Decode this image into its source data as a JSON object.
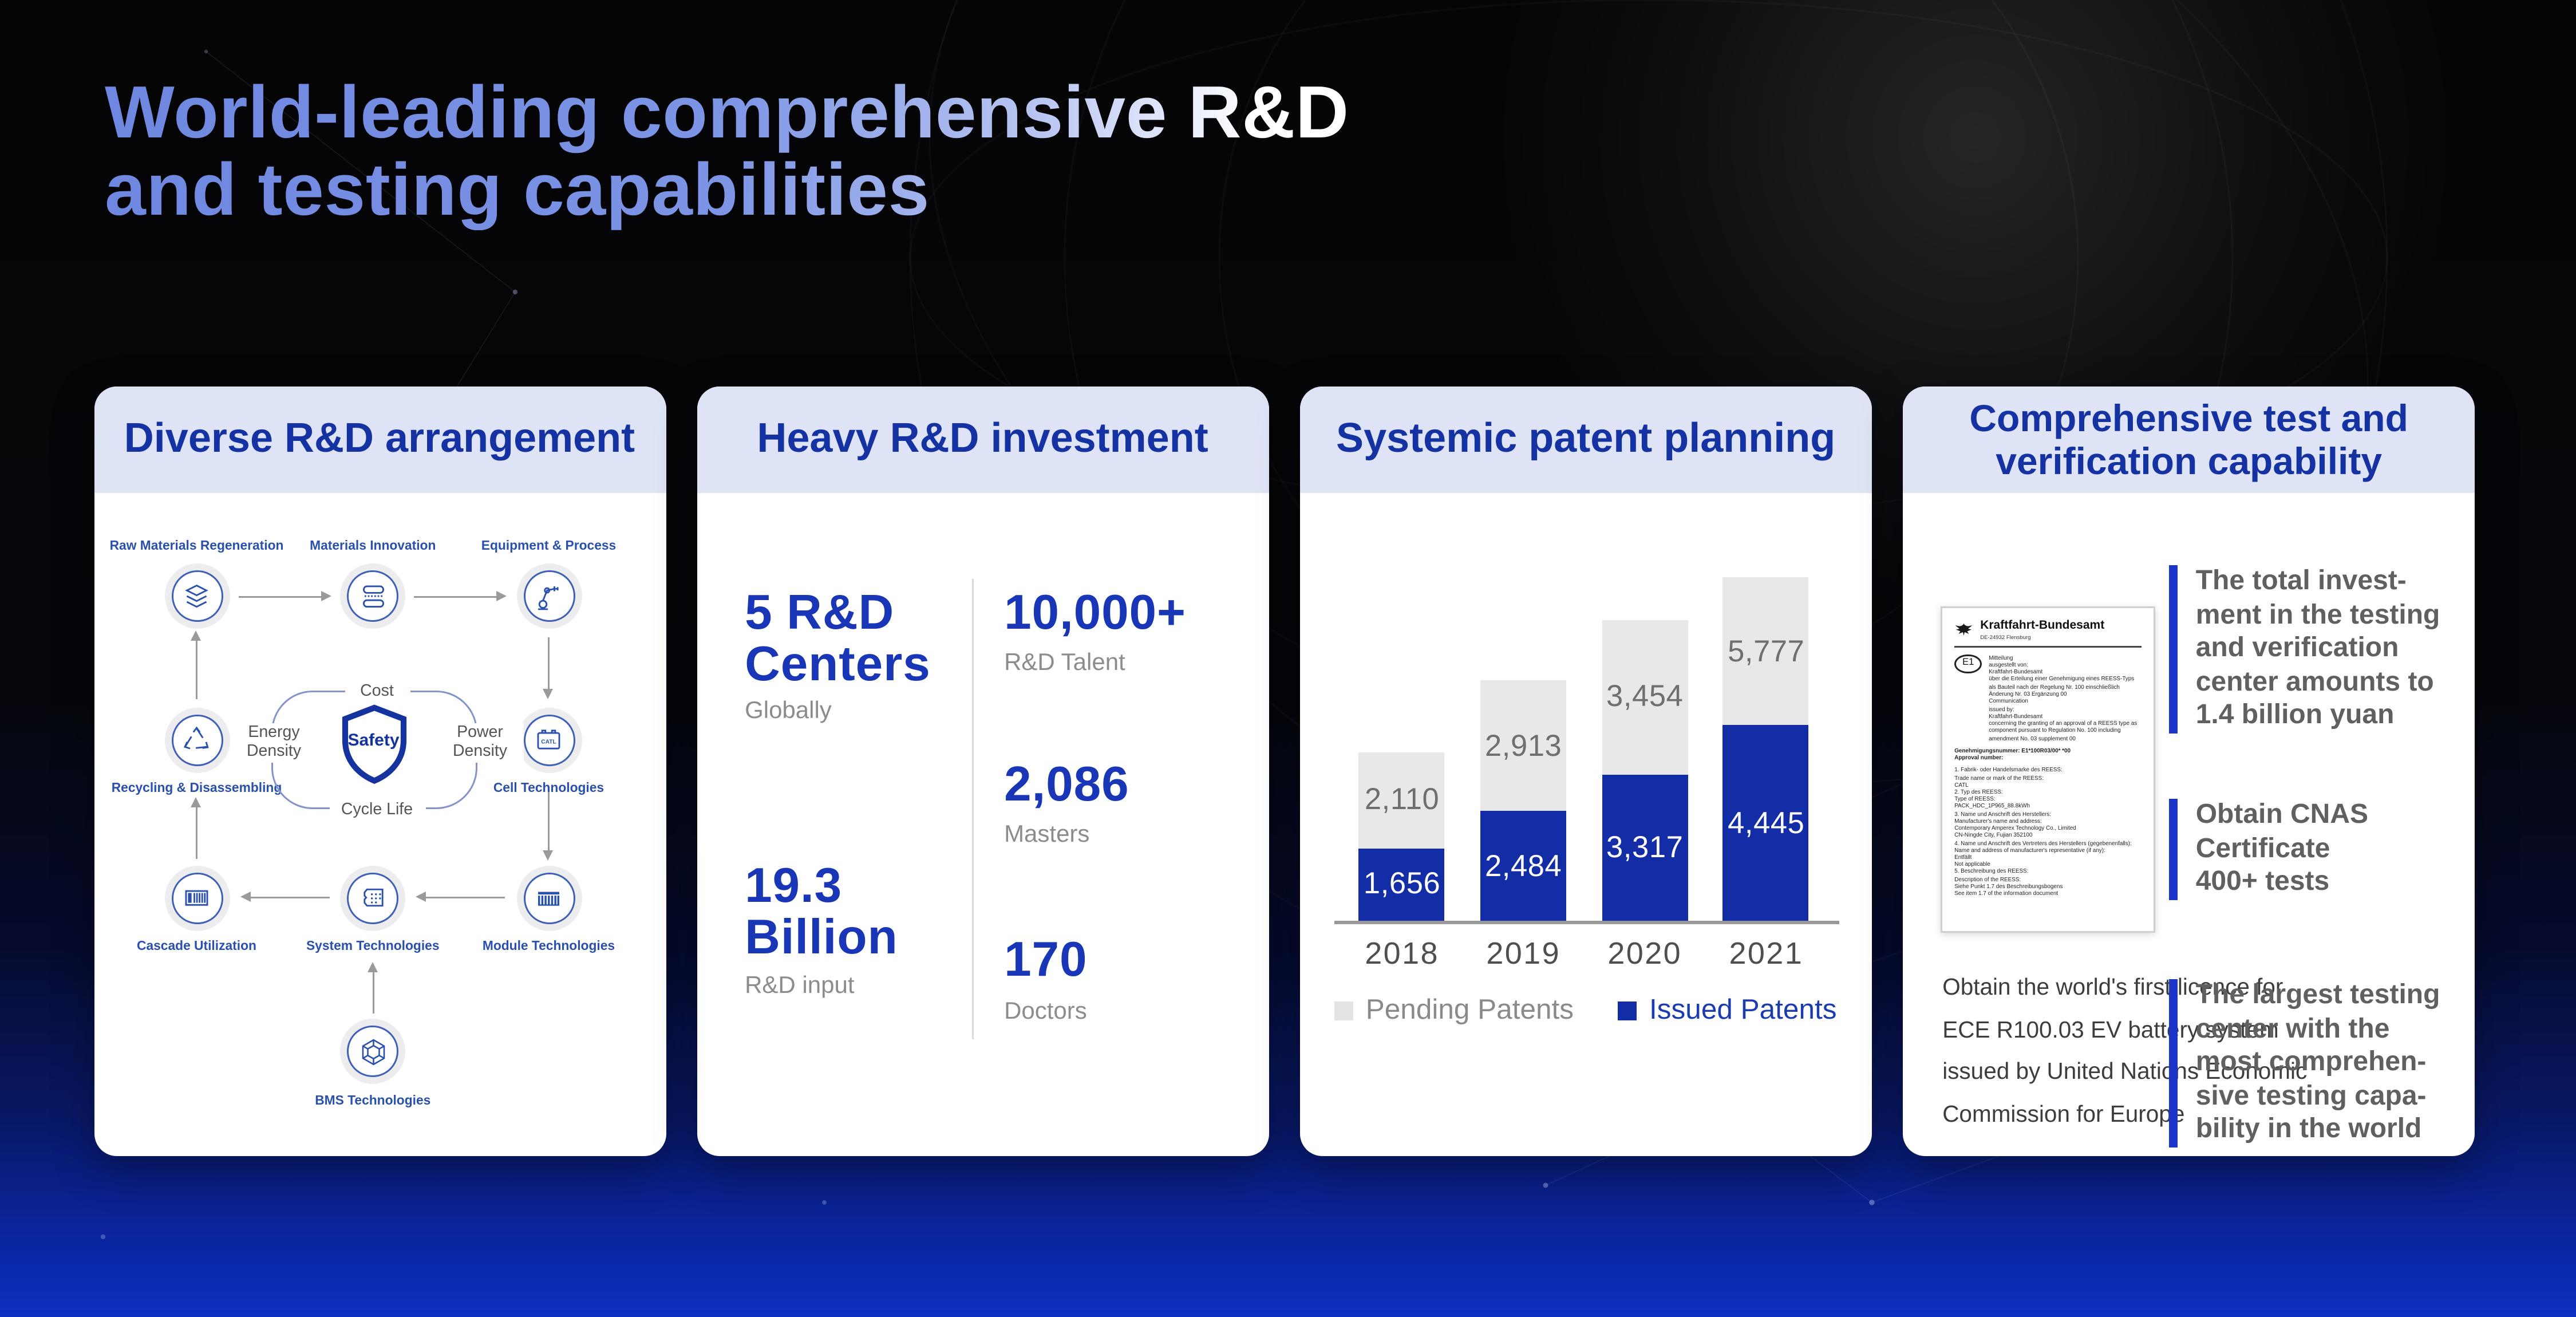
{
  "title": "World-leading comprehensive R&D\nand testing capabilities",
  "colors": {
    "title_blue": "#7e97e8",
    "header_text_blue": "#1532a2",
    "header_bg_lavender": "#dee3f5",
    "number_blue": "#1936b6",
    "bar_blue": "#132da6",
    "pending_gray": "#e8e8eb",
    "accent_bar_blue": "#1a35c8"
  },
  "rd": {
    "header": "Diverse R&D arrangement",
    "nodes": [
      {
        "id": "raw-materials-regeneration",
        "label": "Raw Materials Regeneration",
        "icon": "layers-icon"
      },
      {
        "id": "materials-innovation",
        "label": "Materials Innovation",
        "icon": "material-stack-icon"
      },
      {
        "id": "equipment-process",
        "label": "Equipment & Process",
        "icon": "robot-arm-icon"
      },
      {
        "id": "recycling-disassembling",
        "label": "Recycling & Disassembling",
        "icon": "recycle-icon"
      },
      {
        "id": "cell-technologies",
        "label": "Cell Technologies",
        "icon": "battery-cell-icon"
      },
      {
        "id": "cascade-utilization",
        "label": "Cascade Utilization",
        "icon": "container-rack-icon"
      },
      {
        "id": "system-technologies",
        "label": "System Technologies",
        "icon": "battery-pack-icon"
      },
      {
        "id": "module-technologies",
        "label": "Module Technologies",
        "icon": "battery-module-icon"
      },
      {
        "id": "bms-technologies",
        "label": "BMS Technologies",
        "icon": "wireframe-cube-icon"
      }
    ],
    "center": {
      "shield_label": "Safety",
      "axis_top": "Cost",
      "axis_left": "Energy\nDensity",
      "axis_right": "Power\nDensity",
      "axis_bottom": "Cycle Life"
    }
  },
  "investment": {
    "header": "Heavy R&D investment",
    "stats": [
      {
        "value": "5 R&D\nCenters",
        "label": "Globally"
      },
      {
        "value": "19.3\nBillion",
        "label": "R&D input"
      },
      {
        "value": "10,000+",
        "label": "R&D Talent"
      },
      {
        "value": "2,086",
        "label": "Masters"
      },
      {
        "value": "170",
        "label": "Doctors"
      }
    ]
  },
  "patents": {
    "header": "Systemic patent planning"
  },
  "chart_data": {
    "type": "bar",
    "stacked": true,
    "categories": [
      "2018",
      "2019",
      "2020",
      "2021"
    ],
    "series": [
      {
        "name": "Issued Patents",
        "color": "#132da6",
        "values": [
          1656,
          2484,
          3317,
          4445
        ]
      },
      {
        "name": "Pending Patents",
        "color": "#e8e8eb",
        "values": [
          2110,
          2913,
          3454,
          5777
        ]
      }
    ],
    "title": "Systemic patent planning",
    "legend_position": "bottom",
    "value_labels": true,
    "ylim": [
      0,
      10500
    ]
  },
  "test": {
    "header": "Comprehensive test and\nverification capability",
    "certificate": {
      "authority": "Kraftfahrt-Bundesamt",
      "authority_sub": "DE-24932 Flensburg",
      "e_mark": "E1",
      "intro": "Mitteilung\nausgestellt von:\nKraftfahrt-Bundesamt\nüber die Erteilung einer Genehmigung eines REESS-Typs als Bauteil nach der Regelung Nr. 100 einschließlich Änderung Nr. 03 Ergänzung 00\nCommunication\nissued by:\nKraftfahrt-Bundesamt\nconcerning the granting of an approval of a REESS type as component pursuant to Regulation No. 100 including amendment No. 03 supplement 00",
      "approval": "Genehmigungsnummer:  E1*100R03/00*      *00\nApproval number:",
      "items": "1.   Fabrik- oder Handelsmarke des REESS:\n      Trade name or mark of the REESS:\n      CATL\n2.   Typ des REESS:\n      Type of REESS:\n      PACK_HDC_1P965_88.8kWh\n3.   Name und Anschrift des Herstellers:\n      Manufacturer's name and address:\n      Contemporary Amperex Technology Co., Limited\n      CN-Ningde City, Fujian 352100\n4.   Name und Anschrift des Vertreters des Herstellers (gegebenenfalls):\n      Name and address of manufacturer's representative (if any):\n      Entfällt\n      Not applicable\n5.   Beschreibung des REESS:\n      Description of the REESS:\n      Siehe Punkt 1.7 des Beschreibungsbogens\n      See item 1.7 of the information document"
    },
    "caption": "Obtain the world's first licence for\nECE R100.03 EV battery system\nissued by United Nations Economic\nCommission for Europe",
    "points": [
      "The total invest-\nment in the testing\nand verification\ncenter amounts to\n1.4 billion yuan",
      "Obtain CNAS\nCertificate\n400+ tests",
      "The largest testing\ncenter with the\nmost comprehen-\nsive testing capa-\nbility in the world"
    ]
  }
}
